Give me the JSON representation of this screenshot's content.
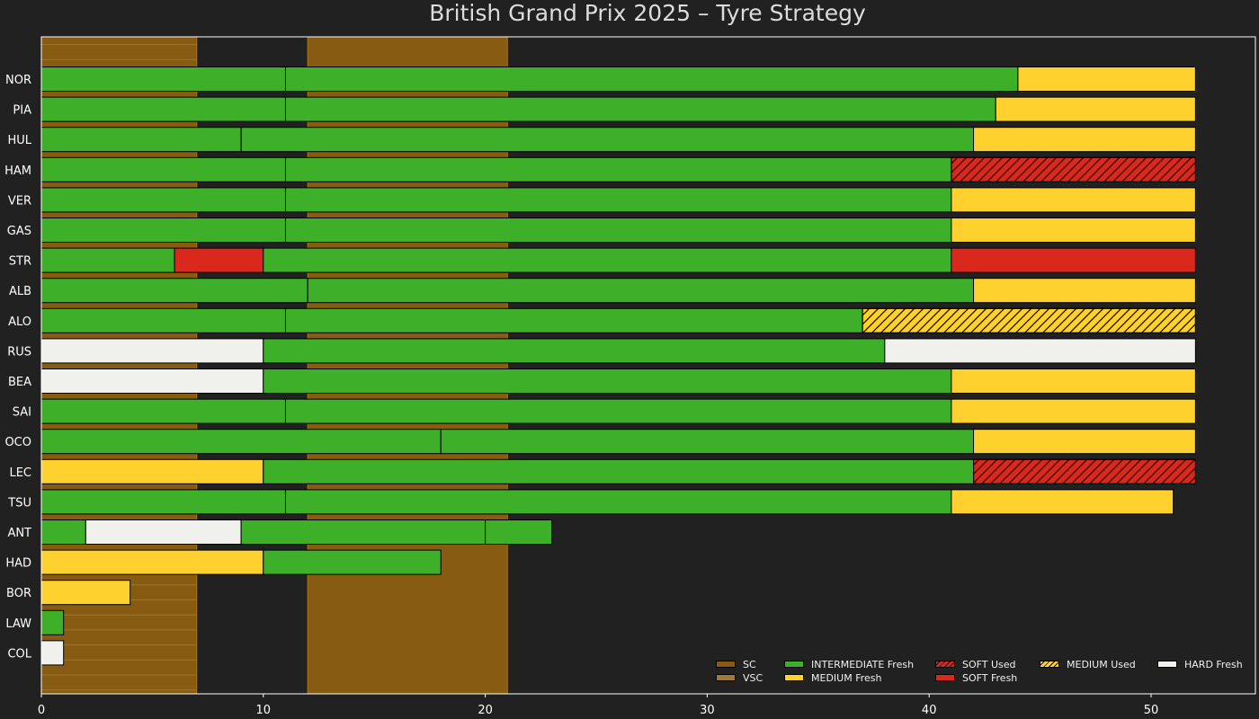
{
  "chart_data": {
    "type": "bar",
    "orientation": "horizontal-stacked",
    "title": "British Grand Prix 2025  –  Tyre Strategy",
    "xlabel": "",
    "ylabel": "",
    "xlim": [
      0,
      54.7
    ],
    "x_ticks": [
      0,
      10,
      20,
      30,
      40,
      50
    ],
    "legend_position": "bottom-right",
    "grid": false,
    "colors": {
      "background": "#212121",
      "INTERMEDIATE": "#3daf29",
      "MEDIUM": "#ffd12e",
      "SOFT": "#da291c",
      "HARD": "#f0f0ec",
      "SC": "#875b12",
      "VSC": "#a07a3a"
    },
    "neutralisations": [
      {
        "type": "SC",
        "start": 0,
        "end": 7
      },
      {
        "type": "SC",
        "start": 12,
        "end": 21
      }
    ],
    "drivers": [
      {
        "driver": "NOR",
        "stints": [
          {
            "compound": "INTERMEDIATE",
            "state": "Fresh",
            "start": 0,
            "end": 11
          },
          {
            "compound": "INTERMEDIATE",
            "state": "Fresh",
            "start": 11,
            "end": 44
          },
          {
            "compound": "MEDIUM",
            "state": "Fresh",
            "start": 44,
            "end": 52
          }
        ]
      },
      {
        "driver": "PIA",
        "stints": [
          {
            "compound": "INTERMEDIATE",
            "state": "Fresh",
            "start": 0,
            "end": 11
          },
          {
            "compound": "INTERMEDIATE",
            "state": "Fresh",
            "start": 11,
            "end": 43
          },
          {
            "compound": "MEDIUM",
            "state": "Fresh",
            "start": 43,
            "end": 52
          }
        ]
      },
      {
        "driver": "HUL",
        "stints": [
          {
            "compound": "INTERMEDIATE",
            "state": "Fresh",
            "start": 0,
            "end": 9
          },
          {
            "compound": "INTERMEDIATE",
            "state": "Fresh",
            "start": 9,
            "end": 42
          },
          {
            "compound": "MEDIUM",
            "state": "Fresh",
            "start": 42,
            "end": 52
          }
        ]
      },
      {
        "driver": "HAM",
        "stints": [
          {
            "compound": "INTERMEDIATE",
            "state": "Fresh",
            "start": 0,
            "end": 11
          },
          {
            "compound": "INTERMEDIATE",
            "state": "Fresh",
            "start": 11,
            "end": 41
          },
          {
            "compound": "SOFT",
            "state": "Used",
            "start": 41,
            "end": 52
          }
        ]
      },
      {
        "driver": "VER",
        "stints": [
          {
            "compound": "INTERMEDIATE",
            "state": "Fresh",
            "start": 0,
            "end": 11
          },
          {
            "compound": "INTERMEDIATE",
            "state": "Fresh",
            "start": 11,
            "end": 41
          },
          {
            "compound": "MEDIUM",
            "state": "Fresh",
            "start": 41,
            "end": 52
          }
        ]
      },
      {
        "driver": "GAS",
        "stints": [
          {
            "compound": "INTERMEDIATE",
            "state": "Fresh",
            "start": 0,
            "end": 11
          },
          {
            "compound": "INTERMEDIATE",
            "state": "Fresh",
            "start": 11,
            "end": 41
          },
          {
            "compound": "MEDIUM",
            "state": "Fresh",
            "start": 41,
            "end": 52
          }
        ]
      },
      {
        "driver": "STR",
        "stints": [
          {
            "compound": "INTERMEDIATE",
            "state": "Fresh",
            "start": 0,
            "end": 6
          },
          {
            "compound": "SOFT",
            "state": "Fresh",
            "start": 6,
            "end": 10
          },
          {
            "compound": "INTERMEDIATE",
            "state": "Fresh",
            "start": 10,
            "end": 41
          },
          {
            "compound": "SOFT",
            "state": "Fresh",
            "start": 41,
            "end": 52
          }
        ]
      },
      {
        "driver": "ALB",
        "stints": [
          {
            "compound": "INTERMEDIATE",
            "state": "Fresh",
            "start": 0,
            "end": 12
          },
          {
            "compound": "INTERMEDIATE",
            "state": "Fresh",
            "start": 12,
            "end": 42
          },
          {
            "compound": "MEDIUM",
            "state": "Fresh",
            "start": 42,
            "end": 52
          }
        ]
      },
      {
        "driver": "ALO",
        "stints": [
          {
            "compound": "INTERMEDIATE",
            "state": "Fresh",
            "start": 0,
            "end": 11
          },
          {
            "compound": "INTERMEDIATE",
            "state": "Fresh",
            "start": 11,
            "end": 37
          },
          {
            "compound": "MEDIUM",
            "state": "Used",
            "start": 37,
            "end": 52
          }
        ]
      },
      {
        "driver": "RUS",
        "stints": [
          {
            "compound": "HARD",
            "state": "Fresh",
            "start": 0,
            "end": 10
          },
          {
            "compound": "INTERMEDIATE",
            "state": "Fresh",
            "start": 10,
            "end": 38
          },
          {
            "compound": "HARD",
            "state": "Fresh",
            "start": 38,
            "end": 52
          }
        ]
      },
      {
        "driver": "BEA",
        "stints": [
          {
            "compound": "HARD",
            "state": "Fresh",
            "start": 0,
            "end": 10
          },
          {
            "compound": "INTERMEDIATE",
            "state": "Fresh",
            "start": 10,
            "end": 41
          },
          {
            "compound": "MEDIUM",
            "state": "Fresh",
            "start": 41,
            "end": 52
          }
        ]
      },
      {
        "driver": "SAI",
        "stints": [
          {
            "compound": "INTERMEDIATE",
            "state": "Fresh",
            "start": 0,
            "end": 11
          },
          {
            "compound": "INTERMEDIATE",
            "state": "Fresh",
            "start": 11,
            "end": 41
          },
          {
            "compound": "MEDIUM",
            "state": "Fresh",
            "start": 41,
            "end": 52
          }
        ]
      },
      {
        "driver": "OCO",
        "stints": [
          {
            "compound": "INTERMEDIATE",
            "state": "Fresh",
            "start": 0,
            "end": 18
          },
          {
            "compound": "INTERMEDIATE",
            "state": "Fresh",
            "start": 18,
            "end": 42
          },
          {
            "compound": "MEDIUM",
            "state": "Fresh",
            "start": 42,
            "end": 52
          }
        ]
      },
      {
        "driver": "LEC",
        "stints": [
          {
            "compound": "MEDIUM",
            "state": "Fresh",
            "start": 0,
            "end": 10
          },
          {
            "compound": "INTERMEDIATE",
            "state": "Fresh",
            "start": 10,
            "end": 42
          },
          {
            "compound": "SOFT",
            "state": "Used",
            "start": 42,
            "end": 52
          }
        ]
      },
      {
        "driver": "TSU",
        "stints": [
          {
            "compound": "INTERMEDIATE",
            "state": "Fresh",
            "start": 0,
            "end": 11
          },
          {
            "compound": "INTERMEDIATE",
            "state": "Fresh",
            "start": 11,
            "end": 41
          },
          {
            "compound": "MEDIUM",
            "state": "Fresh",
            "start": 41,
            "end": 51
          }
        ]
      },
      {
        "driver": "ANT",
        "stints": [
          {
            "compound": "INTERMEDIATE",
            "state": "Fresh",
            "start": 0,
            "end": 2
          },
          {
            "compound": "HARD",
            "state": "Fresh",
            "start": 2,
            "end": 9
          },
          {
            "compound": "INTERMEDIATE",
            "state": "Fresh",
            "start": 9,
            "end": 20
          },
          {
            "compound": "INTERMEDIATE",
            "state": "Fresh",
            "start": 20,
            "end": 23
          }
        ]
      },
      {
        "driver": "HAD",
        "stints": [
          {
            "compound": "MEDIUM",
            "state": "Fresh",
            "start": 0,
            "end": 10
          },
          {
            "compound": "INTERMEDIATE",
            "state": "Fresh",
            "start": 10,
            "end": 18
          }
        ]
      },
      {
        "driver": "BOR",
        "stints": [
          {
            "compound": "MEDIUM",
            "state": "Fresh",
            "start": 0,
            "end": 4
          }
        ]
      },
      {
        "driver": "LAW",
        "stints": [
          {
            "compound": "INTERMEDIATE",
            "state": "Fresh",
            "start": 0,
            "end": 1
          }
        ]
      },
      {
        "driver": "COL",
        "stints": [
          {
            "compound": "HARD",
            "state": "Fresh",
            "start": 0,
            "end": 1
          }
        ]
      }
    ],
    "legend": [
      {
        "label": "SC",
        "swatch": "SC"
      },
      {
        "label": "INTERMEDIATE Fresh",
        "swatch": "INTERMEDIATE"
      },
      {
        "label": "SOFT Used",
        "swatch": "SOFT",
        "hatched": true
      },
      {
        "label": "MEDIUM Used",
        "swatch": "MEDIUM",
        "hatched": true
      },
      {
        "label": "HARD Fresh",
        "swatch": "HARD"
      },
      {
        "label": "VSC",
        "swatch": "VSC"
      },
      {
        "label": "MEDIUM Fresh",
        "swatch": "MEDIUM"
      },
      {
        "label": "SOFT Fresh",
        "swatch": "SOFT"
      }
    ]
  }
}
